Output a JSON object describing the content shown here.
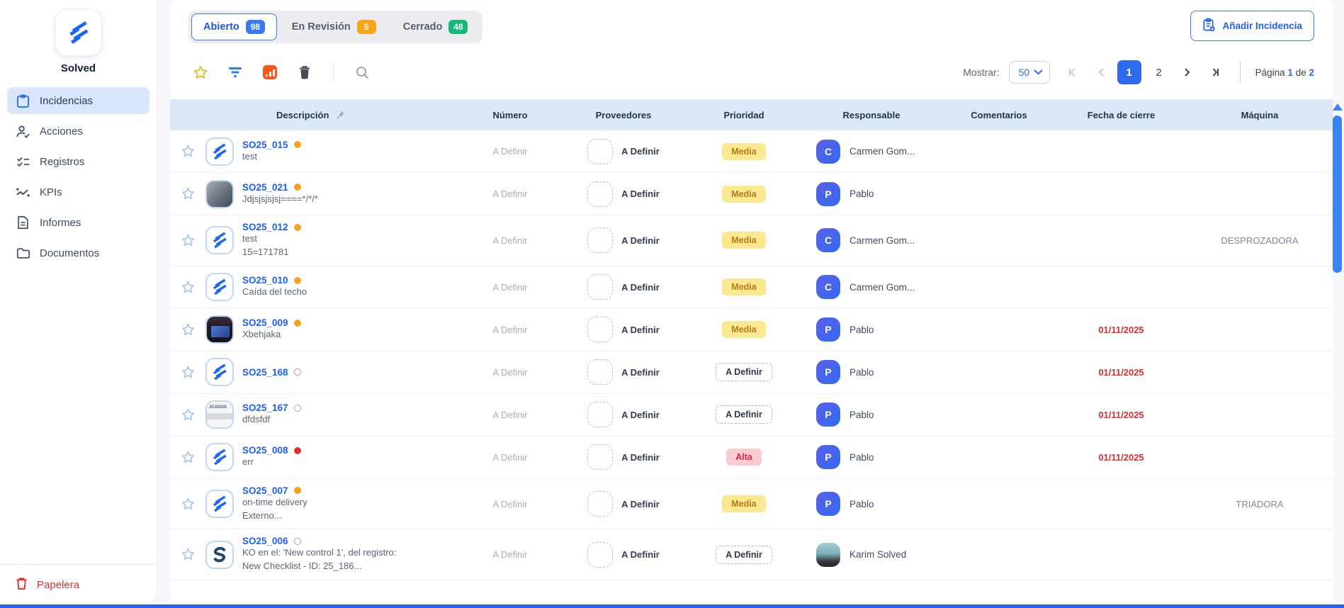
{
  "brand": {
    "name": "Solved"
  },
  "sidebar": {
    "items": [
      {
        "label": "Incidencias",
        "icon": "clipboard-icon",
        "active": true
      },
      {
        "label": "Acciones",
        "icon": "person-check-icon",
        "active": false
      },
      {
        "label": "Registros",
        "icon": "checklist-icon",
        "active": false
      },
      {
        "label": "KPIs",
        "icon": "trend-icon",
        "active": false
      },
      {
        "label": "Informes",
        "icon": "report-icon",
        "active": false
      },
      {
        "label": "Documentos",
        "icon": "folder-icon",
        "active": false
      }
    ],
    "trash": {
      "label": "Papelera",
      "icon": "trash-icon",
      "color": "#e03131"
    }
  },
  "tabs": [
    {
      "label": "Abierto",
      "count": "98",
      "badge_color": "#3b79f2",
      "active": true
    },
    {
      "label": "En Revisión",
      "count": "5",
      "badge_color": "#f7a61c",
      "active": false
    },
    {
      "label": "Cerrado",
      "count": "48",
      "badge_color": "#14b877",
      "active": false
    }
  ],
  "add_button": {
    "label": "Añadir Incidencia",
    "icon": "clipboard-plus-icon"
  },
  "toolbar": {
    "icons": [
      "favorite-star-icon",
      "filter-icon",
      "export-chart-icon",
      "delete-icon",
      "search-icon"
    ],
    "show_label": "Mostrar:",
    "page_size": "50",
    "pagination": {
      "pages": [
        "1",
        "2"
      ],
      "current": "1",
      "summary_prefix": "Página",
      "summary_current": "1",
      "summary_of": "de",
      "summary_total": "2"
    }
  },
  "table": {
    "columns": [
      "Descripción",
      "Número",
      "Proveedores",
      "Prioridad",
      "Responsable",
      "Comentarios",
      "Fecha de cierre",
      "Máquina"
    ],
    "rows": [
      {
        "id": "SO25_015",
        "status": "orange",
        "desc": [
          "test"
        ],
        "thumb": "logo",
        "numero": "A Definir",
        "proveedores": "A Definir",
        "prioridad": {
          "label": "Media",
          "type": "media"
        },
        "responsable": {
          "type": "initial",
          "initial": "C",
          "name": "Carmen Gom..."
        },
        "comentarios": "",
        "fecha": "",
        "maquina": ""
      },
      {
        "id": "SO25_021",
        "status": "orange",
        "desc": [
          "Jdjsjsjsjsj====*/*/*"
        ],
        "thumb": "photo-office",
        "numero": "A Definir",
        "proveedores": "A Definir",
        "prioridad": {
          "label": "Media",
          "type": "media"
        },
        "responsable": {
          "type": "initial",
          "initial": "P",
          "name": "Pablo"
        },
        "comentarios": "",
        "fecha": "",
        "maquina": ""
      },
      {
        "id": "SO25_012",
        "status": "orange",
        "desc": [
          "test",
          "15=171781"
        ],
        "thumb": "logo",
        "numero": "A Definir",
        "proveedores": "A Definir",
        "prioridad": {
          "label": "Media",
          "type": "media"
        },
        "responsable": {
          "type": "initial",
          "initial": "C",
          "name": "Carmen Gom..."
        },
        "comentarios": "",
        "fecha": "",
        "maquina": "DESPROZADORA"
      },
      {
        "id": "SO25_010",
        "status": "orange",
        "desc": [
          "Caída del techo"
        ],
        "thumb": "logo",
        "numero": "A Definir",
        "proveedores": "A Definir",
        "prioridad": {
          "label": "Media",
          "type": "media"
        },
        "responsable": {
          "type": "initial",
          "initial": "C",
          "name": "Carmen Gom..."
        },
        "comentarios": "",
        "fecha": "",
        "maquina": ""
      },
      {
        "id": "SO25_009",
        "status": "orange",
        "desc": [
          "Xbehjaka"
        ],
        "thumb": "photo-screen",
        "numero": "A Definir",
        "proveedores": "A Definir",
        "prioridad": {
          "label": "Media",
          "type": "media"
        },
        "responsable": {
          "type": "initial",
          "initial": "P",
          "name": "Pablo"
        },
        "comentarios": "",
        "fecha": "01/11/2025",
        "maquina": ""
      },
      {
        "id": "SO25_168",
        "status": "open",
        "desc": [],
        "thumb": "logo",
        "numero": "A Definir",
        "proveedores": "A Definir",
        "prioridad": {
          "label": "A Definir",
          "type": "adefinir"
        },
        "responsable": {
          "type": "initial",
          "initial": "P",
          "name": "Pablo"
        },
        "comentarios": "",
        "fecha": "01/11/2025",
        "maquina": ""
      },
      {
        "id": "SO25_167",
        "status": "open",
        "desc": [
          "dfdsfdf"
        ],
        "thumb": "photo-doc",
        "numero": "A Definir",
        "proveedores": "A Definir",
        "prioridad": {
          "label": "A Definir",
          "type": "adefinir"
        },
        "responsable": {
          "type": "initial",
          "initial": "P",
          "name": "Pablo"
        },
        "comentarios": "",
        "fecha": "01/11/2025",
        "maquina": ""
      },
      {
        "id": "SO25_008",
        "status": "red",
        "desc": [
          "err"
        ],
        "thumb": "logo",
        "numero": "A Definir",
        "proveedores": "A Definir",
        "prioridad": {
          "label": "Alta",
          "type": "alta"
        },
        "responsable": {
          "type": "initial",
          "initial": "P",
          "name": "Pablo"
        },
        "comentarios": "",
        "fecha": "01/11/2025",
        "maquina": ""
      },
      {
        "id": "SO25_007",
        "status": "orange",
        "desc": [
          "on-time delivery",
          "Externo..."
        ],
        "thumb": "logo",
        "numero": "A Definir",
        "proveedores": "A Definir",
        "prioridad": {
          "label": "Media",
          "type": "media"
        },
        "responsable": {
          "type": "initial",
          "initial": "P",
          "name": "Pablo"
        },
        "comentarios": "",
        "fecha": "",
        "maquina": "TRIADORA"
      },
      {
        "id": "SO25_006",
        "status": "open",
        "desc": [
          "KO en el: 'New control 1', del registro:",
          "New Checklist - ID: 25_186..."
        ],
        "thumb": "logo-alt",
        "numero": "A Definir",
        "proveedores": "A Definir",
        "prioridad": {
          "label": "A Definir",
          "type": "adefinir"
        },
        "responsable": {
          "type": "photo",
          "initial": "",
          "name": "Karim Solved"
        },
        "comentarios": "",
        "fecha": "",
        "maquina": ""
      }
    ]
  },
  "colors": {
    "primary": "#2e6bf0",
    "header_bg": "#dce8f8",
    "media_badge_bg": "#fbe992",
    "media_badge_text": "#b97a1a",
    "alta_badge_bg": "#f8ccd2",
    "alta_badge_text": "#e02446",
    "date_red": "#d92f2f",
    "dot_orange": "#f5a31d",
    "dot_red": "#e03131"
  }
}
